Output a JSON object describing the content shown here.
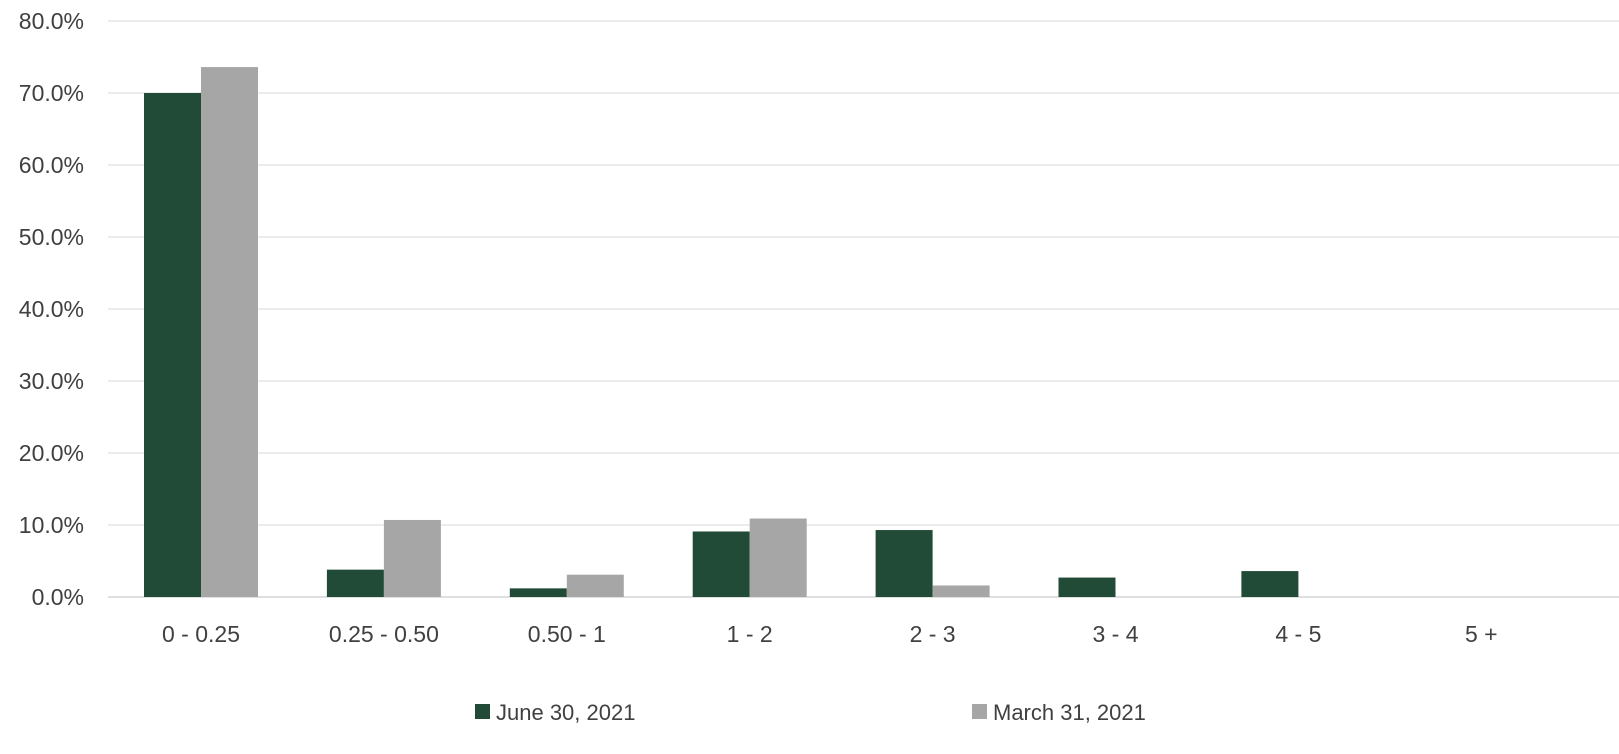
{
  "chart_data": {
    "type": "bar",
    "title": "",
    "xlabel": "",
    "ylabel": "",
    "categories": [
      "0 - 0.25",
      "0.25 - 0.50",
      "0.50 - 1",
      "1 - 2",
      "2 - 3",
      "3 - 4",
      "4 - 5",
      "5 +"
    ],
    "series": [
      {
        "name": "June 30, 2021",
        "color": "#224B37",
        "values": [
          70.0,
          3.8,
          1.2,
          9.1,
          9.3,
          2.7,
          3.6,
          0.0
        ]
      },
      {
        "name": "March 31, 2021",
        "color": "#A6A6A6",
        "values": [
          73.6,
          10.7,
          3.1,
          10.9,
          1.6,
          0.0,
          0.0,
          0.0
        ]
      }
    ],
    "ylim": [
      0,
      80
    ],
    "yticks": [
      "0.0%",
      "10.0%",
      "20.0%",
      "30.0%",
      "40.0%",
      "50.0%",
      "60.0%",
      "70.0%",
      "80.0%"
    ],
    "grid": true,
    "legend_position": "bottom"
  }
}
